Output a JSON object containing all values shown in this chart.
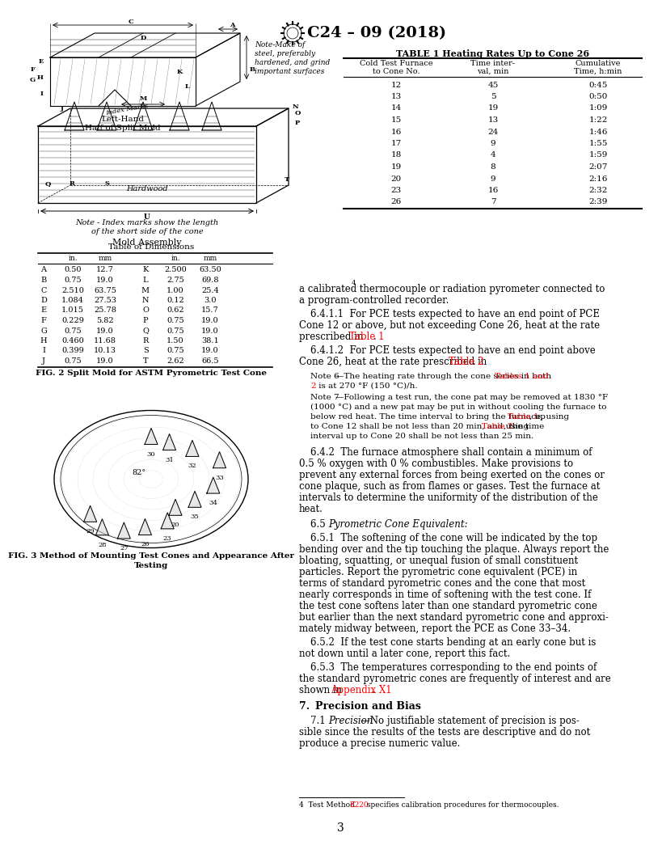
{
  "title": "C24 – 09 (2018)",
  "page_number": "3",
  "bg_color": "#ffffff",
  "table1_title": "TABLE 1 Heating Rates Up to Cone 26",
  "table1_data": [
    [
      "12",
      "45",
      "0:45"
    ],
    [
      "13",
      "5",
      "0:50"
    ],
    [
      "14",
      "19",
      "1:09"
    ],
    [
      "15",
      "13",
      "1:22"
    ],
    [
      "16",
      "24",
      "1:46"
    ],
    [
      "17",
      "9",
      "1:55"
    ],
    [
      "18",
      "4",
      "1:59"
    ],
    [
      "19",
      "8",
      "2:07"
    ],
    [
      "20",
      "9",
      "2:16"
    ],
    [
      "23",
      "16",
      "2:32"
    ],
    [
      "26",
      "7",
      "2:39"
    ]
  ],
  "dim_data": [
    [
      "A",
      "0.50",
      "12.7",
      "K",
      "2.500",
      "63.50"
    ],
    [
      "B",
      "0.75",
      "19.0",
      "L",
      "2.75",
      "69.8"
    ],
    [
      "C",
      "2.510",
      "63.75",
      "M",
      "1.00",
      "25.4"
    ],
    [
      "D",
      "1.084",
      "27.53",
      "N",
      "0.12",
      "3.0"
    ],
    [
      "E",
      "1.015",
      "25.78",
      "O",
      "0.62",
      "15.7"
    ],
    [
      "F",
      "0.229",
      "5.82",
      "P",
      "0.75",
      "19.0"
    ],
    [
      "G",
      "0.75",
      "19.0",
      "Q",
      "0.75",
      "19.0"
    ],
    [
      "H",
      "0.460",
      "11.68",
      "R",
      "1.50",
      "38.1"
    ],
    [
      "I",
      "0.399",
      "10.13",
      "S",
      "0.75",
      "19.0"
    ],
    [
      "J",
      "0.75",
      "19.0",
      "T",
      "2.62",
      "66.5"
    ]
  ],
  "fig2_caption": "FIG. 2 Split Mold for ASTM Pyrometric Test Cone",
  "fig3_caption_line1": "FIG. 3 Method of Mounting Test Cones and Appearance After",
  "fig3_caption_line2": "Testing",
  "left_hand_label_line1": "Left-Hand",
  "left_hand_label_line2": "Half of Split Mold",
  "mold_assembly_label": "Mold Assembly",
  "note_index_marks": "Note - Index marks show the length",
  "note_index_marks2": "of the short side of the cone",
  "dim_table_title": "Table of Dimensions",
  "note_make": "Note-Make of",
  "note_make2": "steel, preferably",
  "note_make3": "hardened, and grind",
  "note_make4": "important surfaces",
  "hardwood_label": "Hardwood",
  "u_label": "U"
}
